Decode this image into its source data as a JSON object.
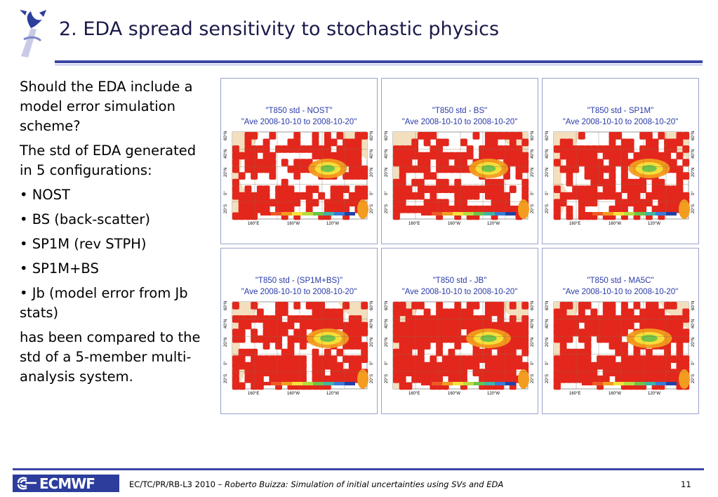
{
  "slide": {
    "title": "2. EDA spread sensitivity to stochastic physics",
    "body": [
      "Should the EDA include a model error simulation scheme?",
      "The std of EDA generated in 5 configurations:",
      "• NOST",
      "• BS (back-scatter)",
      "• SP1M (rev STPH)",
      "• SP1M+BS",
      "• Jb (model error from Jb stats)",
      "has been compared to the std of a 5-member multi-analysis system."
    ],
    "colors": {
      "title_rule": "#3a46a6",
      "panel_title": "#2a3aa8",
      "map_red": "#e3271c",
      "land": "#f3dfbe",
      "footer_logo_bg": "#2c3d9c"
    }
  },
  "maps": {
    "panels": [
      {
        "title": "\"T850 std - NOST\"",
        "period": "\"Ave 2008-10-10 to 2008-10-20\"",
        "intensity": 0.3
      },
      {
        "title": "\"T850 std - BS\"",
        "period": "\"Ave 2008-10-10 to 2008-10-20\"",
        "intensity": 0.33
      },
      {
        "title": "\"T850 std - SP1M\"",
        "period": "\"Ave 2008-10-10 to 2008-10-20\"",
        "intensity": 0.45
      },
      {
        "title": "\"T850 std - (SP1M+BS)\"",
        "period": "\"Ave 2008-10-10 to 2008-10-20\"",
        "intensity": 0.5
      },
      {
        "title": "\"T850 std - JB\"",
        "period": "\"Ave 2008-10-10 to 2008-10-20\"",
        "intensity": 0.65
      },
      {
        "title": "\"T850 std - MA5C\"",
        "period": "\"Ave 2008-10-10 to 2008-10-20\"",
        "intensity": 0.7
      }
    ],
    "lat_labels": [
      "60°N",
      "40°N",
      "20°N",
      "0°",
      "20°S"
    ],
    "lon_labels": [
      "160°E",
      "160°W",
      "120°W"
    ],
    "icon": "ecmwf-logo-icon"
  },
  "footer": {
    "logo_text": "ECMWF",
    "citation_plain": "EC/TC/PR/RB-L3 2010 – ",
    "citation_italic": "Roberto Buizza: Simulation of initial uncertainties using SVs and EDA",
    "page": "11"
  }
}
